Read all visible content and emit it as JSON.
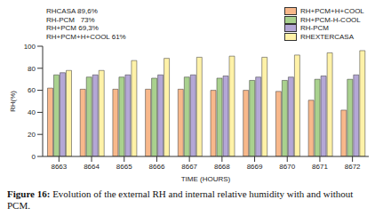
{
  "chart_data": {
    "type": "bar",
    "categories": [
      "8663",
      "8664",
      "8665",
      "8666",
      "8667",
      "8668",
      "8669",
      "8670",
      "8671",
      "8672"
    ],
    "series": [
      {
        "name": "RH+PCM+H+COOL",
        "color": "#f8b88b",
        "values": [
          62,
          61,
          61,
          61,
          61,
          60,
          60,
          59,
          51,
          42
        ]
      },
      {
        "name": "RH+PCM-H-COOL",
        "color": "#a9d18e",
        "values": [
          74,
          72,
          72,
          71,
          72,
          71,
          69,
          69,
          70,
          70
        ]
      },
      {
        "name": "RH-PCM",
        "color": "#b4a7d6",
        "values": [
          76,
          74,
          74,
          74,
          74,
          73,
          72,
          72,
          73,
          74
        ]
      },
      {
        "name": "RHEXTERCASA",
        "color": "#fff2a8",
        "values": [
          78,
          78,
          87,
          89,
          90,
          91,
          90,
          92,
          94,
          96
        ]
      }
    ],
    "x_label": "TIME (HOURS)",
    "y_label": "RH(%)",
    "ylim": [
      0,
      100
    ],
    "yticks": [
      0,
      20,
      40,
      60,
      80,
      100
    ],
    "grid": false,
    "legend": "upper right",
    "annotations": [
      "RHCASA 89,6%",
      "RH-PCM   73%",
      "RH+PCM 69,3%",
      "RH+PCM+H+COOL 61%"
    ],
    "caption_label": "Figure 16:",
    "caption": "Evolution of the external RH and internal relative humidity with and without PCM."
  }
}
